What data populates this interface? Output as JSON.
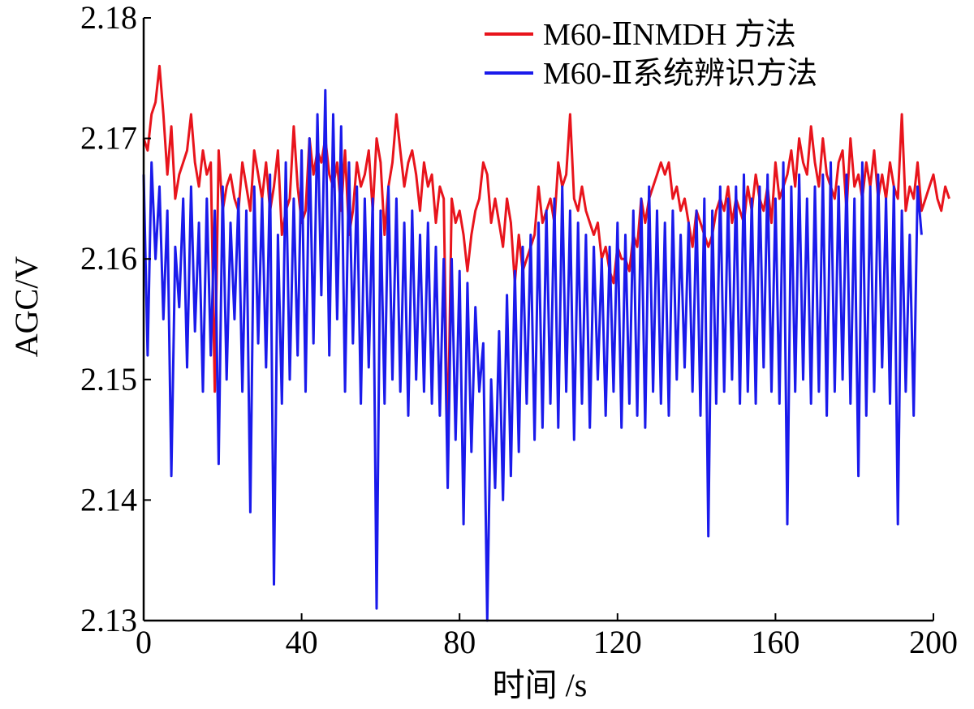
{
  "chart_data": {
    "type": "line",
    "xlabel": "时间 /s",
    "ylabel": "AGC/V",
    "xlim": [
      0,
      200
    ],
    "ylim": [
      2.13,
      2.18
    ],
    "xticks": [
      "0",
      "40",
      "80",
      "120",
      "160",
      "200"
    ],
    "yticks": [
      "2.13",
      "2.14",
      "2.15",
      "2.16",
      "2.17",
      "2.18"
    ],
    "grid": false,
    "legend_position": "top-right",
    "sample_interval_s": 1,
    "series": [
      {
        "name": "M60-ⅡNMDH 方法",
        "color": "#e8141c",
        "values": [
          2.17,
          2.169,
          2.172,
          2.173,
          2.176,
          2.172,
          2.167,
          2.171,
          2.165,
          2.167,
          2.168,
          2.169,
          2.172,
          2.168,
          2.166,
          2.169,
          2.167,
          2.168,
          2.149,
          2.169,
          2.164,
          2.166,
          2.167,
          2.165,
          2.164,
          2.168,
          2.166,
          2.164,
          2.169,
          2.167,
          2.165,
          2.168,
          2.164,
          2.166,
          2.169,
          2.162,
          2.164,
          2.165,
          2.171,
          2.166,
          2.163,
          2.164,
          2.17,
          2.167,
          2.169,
          2.168,
          2.17,
          2.167,
          2.166,
          2.168,
          2.164,
          2.169,
          2.162,
          2.164,
          2.168,
          2.166,
          2.167,
          2.169,
          2.164,
          2.17,
          2.168,
          2.162,
          2.166,
          2.168,
          2.172,
          2.169,
          2.166,
          2.168,
          2.169,
          2.167,
          2.164,
          2.168,
          2.166,
          2.167,
          2.163,
          2.166,
          2.165,
          2.144,
          2.165,
          2.163,
          2.164,
          2.162,
          2.159,
          2.162,
          2.164,
          2.165,
          2.168,
          2.167,
          2.163,
          2.165,
          2.163,
          2.161,
          2.165,
          2.163,
          2.158,
          2.162,
          2.159,
          2.16,
          2.161,
          2.162,
          2.166,
          2.163,
          2.164,
          2.165,
          2.163,
          2.168,
          2.166,
          2.167,
          2.172,
          2.165,
          2.164,
          2.166,
          2.164,
          2.163,
          2.162,
          2.163,
          2.16,
          2.161,
          2.159,
          2.158,
          2.161,
          2.16,
          2.16,
          2.159,
          2.162,
          2.161,
          2.165,
          2.163,
          2.165,
          2.166,
          2.167,
          2.168,
          2.167,
          2.168,
          2.165,
          2.166,
          2.164,
          2.165,
          2.163,
          2.161,
          2.164,
          2.163,
          2.162,
          2.161,
          2.162,
          2.164,
          2.165,
          2.164,
          2.166,
          2.163,
          2.165,
          2.164,
          2.163,
          2.166,
          2.164,
          2.167,
          2.165,
          2.164,
          2.166,
          2.163,
          2.168,
          2.165,
          2.166,
          2.167,
          2.169,
          2.166,
          2.17,
          2.168,
          2.167,
          2.171,
          2.168,
          2.166,
          2.17,
          2.167,
          2.166,
          2.165,
          2.168,
          2.169,
          2.164,
          2.17,
          2.166,
          2.167,
          2.165,
          2.168,
          2.166,
          2.169,
          2.165,
          2.167,
          2.165,
          2.168,
          2.166,
          2.165,
          2.172,
          2.164,
          2.166,
          2.165,
          2.168,
          2.164,
          2.165,
          2.166,
          2.167,
          2.165,
          2.164,
          2.166,
          2.165
        ]
      },
      {
        "name": "M60-Ⅱ系统辨识方法",
        "color": "#1a1aeb",
        "values": [
          2.167,
          2.152,
          2.168,
          2.16,
          2.166,
          2.155,
          2.164,
          2.142,
          2.161,
          2.156,
          2.165,
          2.151,
          2.166,
          2.154,
          2.163,
          2.149,
          2.165,
          2.152,
          2.164,
          2.143,
          2.166,
          2.15,
          2.163,
          2.155,
          2.165,
          2.149,
          2.164,
          2.139,
          2.166,
          2.153,
          2.165,
          2.151,
          2.167,
          2.133,
          2.162,
          2.148,
          2.168,
          2.15,
          2.165,
          2.152,
          2.169,
          2.149,
          2.17,
          2.153,
          2.172,
          2.157,
          2.174,
          2.152,
          2.172,
          2.155,
          2.171,
          2.149,
          2.168,
          2.153,
          2.166,
          2.148,
          2.165,
          2.151,
          2.165,
          2.131,
          2.164,
          2.148,
          2.166,
          2.15,
          2.165,
          2.149,
          2.163,
          2.147,
          2.164,
          2.15,
          2.162,
          2.149,
          2.163,
          2.148,
          2.161,
          2.147,
          2.16,
          2.141,
          2.16,
          2.145,
          2.159,
          2.138,
          2.158,
          2.144,
          2.156,
          2.149,
          2.153,
          2.13,
          2.15,
          2.141,
          2.154,
          2.14,
          2.157,
          2.142,
          2.159,
          2.144,
          2.161,
          2.148,
          2.162,
          2.145,
          2.163,
          2.146,
          2.164,
          2.148,
          2.165,
          2.146,
          2.166,
          2.149,
          2.164,
          2.145,
          2.163,
          2.148,
          2.162,
          2.146,
          2.161,
          2.15,
          2.16,
          2.147,
          2.161,
          2.149,
          2.163,
          2.146,
          2.162,
          2.148,
          2.164,
          2.147,
          2.165,
          2.146,
          2.166,
          2.149,
          2.164,
          2.148,
          2.163,
          2.147,
          2.164,
          2.15,
          2.162,
          2.151,
          2.163,
          2.149,
          2.164,
          2.147,
          2.165,
          2.137,
          2.164,
          2.148,
          2.166,
          2.149,
          2.165,
          2.15,
          2.166,
          2.148,
          2.167,
          2.149,
          2.165,
          2.148,
          2.166,
          2.151,
          2.167,
          2.149,
          2.165,
          2.148,
          2.168,
          2.138,
          2.166,
          2.149,
          2.167,
          2.15,
          2.165,
          2.148,
          2.166,
          2.149,
          2.167,
          2.147,
          2.168,
          2.149,
          2.166,
          2.15,
          2.167,
          2.148,
          2.165,
          2.142,
          2.168,
          2.147,
          2.166,
          2.149,
          2.167,
          2.151,
          2.165,
          2.148,
          2.166,
          2.138,
          2.164,
          2.149,
          2.162,
          2.147,
          2.166,
          2.162
        ]
      }
    ]
  }
}
